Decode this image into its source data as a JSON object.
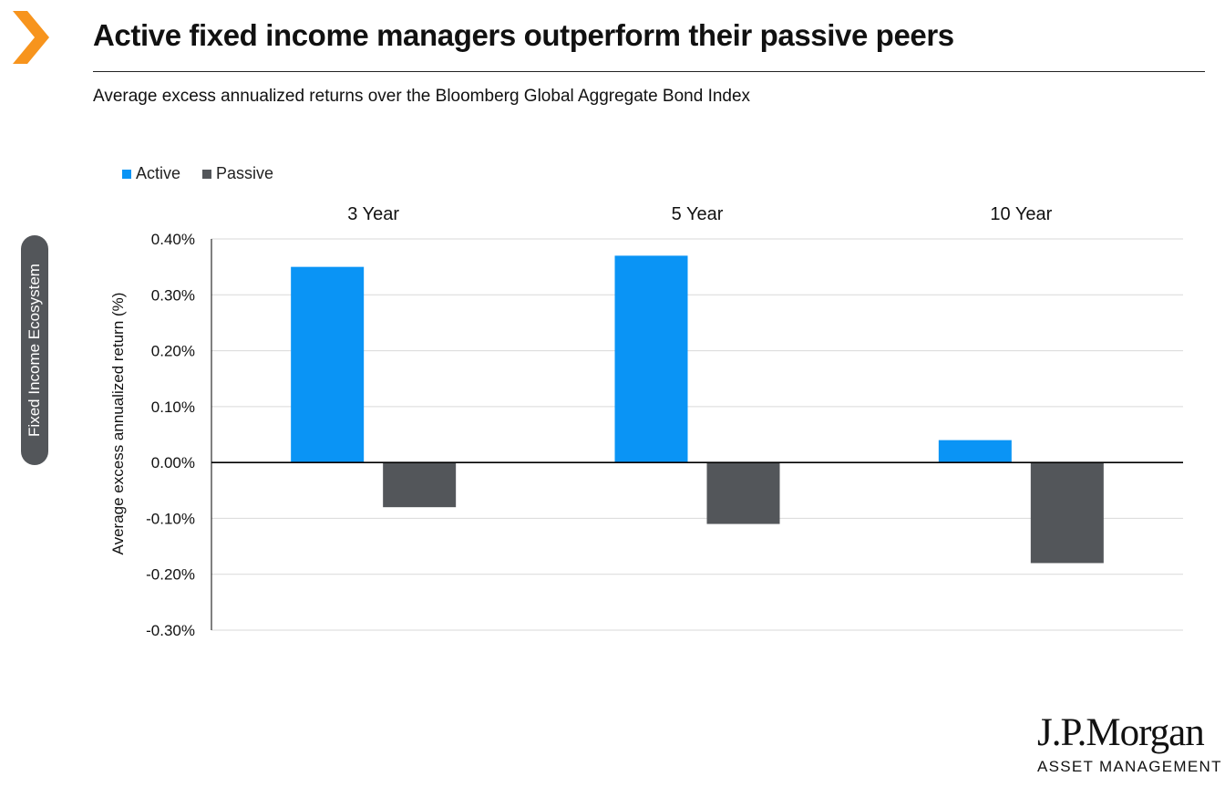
{
  "header": {
    "title": "Active fixed income managers outperform their passive peers",
    "subtitle": "Average excess annualized returns over the Bloomberg Global Aggregate Bond Index"
  },
  "side_tab": {
    "label": "Fixed Income Ecosystem"
  },
  "logo": {
    "name": "J.P.Morgan",
    "tagline": "ASSET MANAGEMENT"
  },
  "colors": {
    "accent": "#f7941d",
    "active": "#0a94f5",
    "passive": "#53565a",
    "gridline": "#d9d9d9",
    "axis": "#000000"
  },
  "icons": {
    "header_marker": "chevron-right-icon"
  },
  "chart_data": {
    "type": "bar",
    "categories": [
      "3 Year",
      "5 Year",
      "10 Year"
    ],
    "series": [
      {
        "name": "Active",
        "values": [
          0.35,
          0.37,
          0.04
        ]
      },
      {
        "name": "Passive",
        "values": [
          -0.08,
          -0.11,
          -0.18
        ]
      }
    ],
    "ylabel": "Average excess annualized return (%)",
    "ylim": [
      -0.3,
      0.4
    ],
    "yticks": [
      "0.40%",
      "0.30%",
      "0.20%",
      "0.10%",
      "0.00%",
      "-0.10%",
      "-0.20%",
      "-0.30%"
    ],
    "grid": true,
    "legend": "top-left",
    "category_labels_position": "top"
  }
}
